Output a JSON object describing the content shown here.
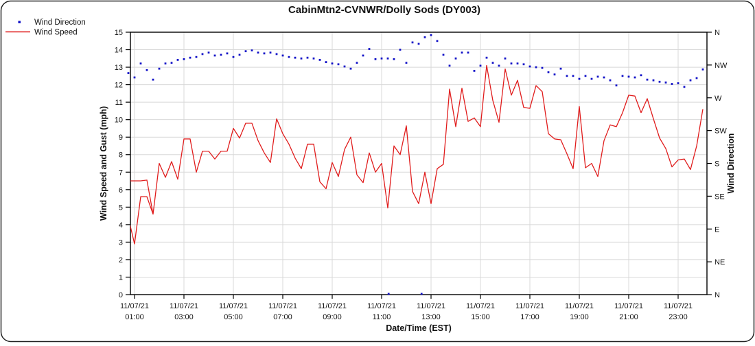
{
  "chart_data": {
    "type": "line",
    "title": "CabinMtn2-CVNWR/Dolly Sods (DY003)",
    "xlabel": "Date/Time (EST)",
    "ylabel_left": "Wind Speed and Gust (mph)",
    "ylabel_right": "Wind Direction",
    "x_date": "11/07/21",
    "x_tick_times": [
      "01:00",
      "03:00",
      "05:00",
      "07:00",
      "09:00",
      "11:00",
      "13:00",
      "15:00",
      "17:00",
      "19:00",
      "21:00",
      "23:00"
    ],
    "ylim_left": [
      0,
      15
    ],
    "y_ticks_left": [
      0,
      1,
      2,
      3,
      4,
      5,
      6,
      7,
      8,
      9,
      10,
      11,
      12,
      13,
      14,
      15
    ],
    "y_ticks_right_top_to_bottom": [
      "N",
      "NW",
      "W",
      "SW",
      "S",
      "SE",
      "E",
      "NE",
      "N"
    ],
    "grid": true,
    "legend": {
      "position": "top-left",
      "items": [
        {
          "label": "Wind Direction",
          "marker": "dot",
          "color": "#1414c8"
        },
        {
          "label": "Wind Speed",
          "marker": "line",
          "color": "#e01c1c"
        }
      ]
    },
    "colors": {
      "wind_speed_line": "#e01c1c",
      "wind_direction_dot": "#1414c8",
      "grid": "#d8d8d8",
      "frame": "#000000"
    },
    "times": [
      "00:45",
      "01:00",
      "01:15",
      "01:30",
      "01:45",
      "02:00",
      "02:15",
      "02:30",
      "02:45",
      "03:00",
      "03:15",
      "03:30",
      "03:45",
      "04:00",
      "04:15",
      "04:30",
      "04:45",
      "05:00",
      "05:15",
      "05:30",
      "05:45",
      "06:00",
      "06:15",
      "06:30",
      "06:45",
      "07:00",
      "07:15",
      "07:30",
      "07:45",
      "08:00",
      "08:15",
      "08:30",
      "08:45",
      "09:00",
      "09:15",
      "09:30",
      "09:45",
      "10:00",
      "10:15",
      "10:30",
      "10:45",
      "11:00",
      "11:15",
      "11:30",
      "11:45",
      "12:00",
      "12:15",
      "12:30",
      "12:45",
      "13:00",
      "13:15",
      "13:30",
      "13:45",
      "14:00",
      "14:15",
      "14:30",
      "14:45",
      "15:00",
      "15:15",
      "15:30",
      "15:45",
      "16:00",
      "16:15",
      "16:30",
      "16:45",
      "17:00",
      "17:15",
      "17:30",
      "17:45",
      "18:00",
      "18:15",
      "18:30",
      "18:45",
      "19:00",
      "19:15",
      "19:30",
      "19:45",
      "20:00",
      "20:15",
      "20:30",
      "20:45",
      "21:00",
      "21:15",
      "21:30",
      "21:45",
      "22:00",
      "22:15",
      "22:30",
      "22:45",
      "23:00",
      "23:15",
      "23:30",
      "23:45",
      "24:00"
    ],
    "wind_speed_mph": [
      4.4,
      2.9,
      5.6,
      5.6,
      4.6,
      7.5,
      6.7,
      7.6,
      6.6,
      8.9,
      8.9,
      7.0,
      8.2,
      8.2,
      7.75,
      8.2,
      8.2,
      9.5,
      8.95,
      9.8,
      9.8,
      8.8,
      8.1,
      7.55,
      10.05,
      9.2,
      8.6,
      7.8,
      7.2,
      8.6,
      8.6,
      6.45,
      6.05,
      7.55,
      6.75,
      8.3,
      9.0,
      6.85,
      6.4,
      8.1,
      7.0,
      7.5,
      4.95,
      8.5,
      8.0,
      9.65,
      5.9,
      5.2,
      7.0,
      5.2,
      7.2,
      7.45,
      11.75,
      9.6,
      11.8,
      9.9,
      10.1,
      9.6,
      13.1,
      11.1,
      9.85,
      12.9,
      11.4,
      12.25,
      10.7,
      10.65,
      11.95,
      11.6,
      9.2,
      8.9,
      8.85,
      8.05,
      7.2,
      10.75,
      7.25,
      7.5,
      6.75,
      8.8,
      9.7,
      9.6,
      10.4,
      11.4,
      11.35,
      10.4,
      11.2,
      10.05,
      8.95,
      8.35,
      7.3,
      7.7,
      7.75,
      7.15,
      8.5,
      10.6
    ],
    "wind_direction_deg": [
      304,
      298,
      317,
      308,
      295,
      310,
      317,
      318,
      322,
      323,
      325,
      326,
      330,
      332,
      328,
      329,
      331,
      326,
      329,
      334,
      335,
      332,
      331,
      332,
      330,
      328,
      326,
      325,
      324,
      325,
      324,
      322,
      319,
      317,
      316,
      313,
      310,
      318,
      328,
      337,
      323,
      324,
      324,
      323,
      336,
      318,
      346,
      344,
      353,
      356,
      348,
      329,
      314,
      324,
      332,
      332,
      307,
      314,
      325,
      318,
      314,
      324,
      317,
      317,
      316,
      313,
      312,
      311,
      305,
      302,
      310,
      300,
      300,
      296,
      300,
      296,
      299,
      298,
      294,
      287,
      300,
      299,
      298,
      301,
      295,
      294,
      292,
      291,
      289,
      290,
      285,
      294,
      297,
      309
    ],
    "wind_direction_extra_north_points": [
      {
        "time": "11:17",
        "deg": 1
      },
      {
        "time": "12:37",
        "deg": 1
      }
    ],
    "wind_gust_mph_segment": {
      "times": [
        "00:45",
        "01:00",
        "01:15",
        "01:30",
        "01:45"
      ],
      "values": [
        6.5,
        6.5,
        6.5,
        6.55,
        4.6
      ]
    }
  }
}
